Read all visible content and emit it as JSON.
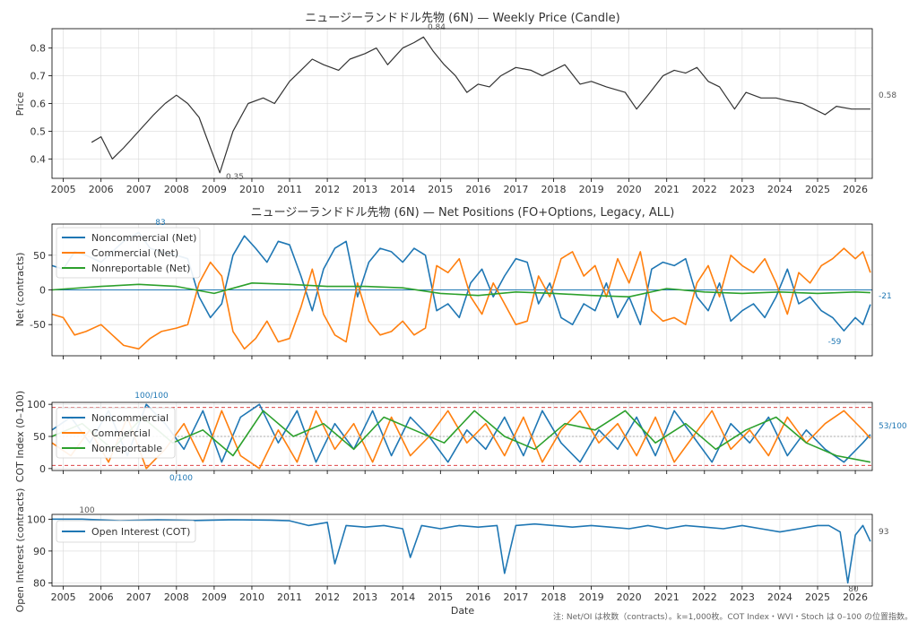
{
  "footnote": "注: Net/OI は枚数（contracts）。k=1,000枚。COT Index・WVI・Stoch は 0–100 の位置指数。",
  "xlabel": "Date",
  "x_ticks": [
    "2005",
    "2006",
    "2007",
    "2008",
    "2009",
    "2010",
    "2011",
    "2012",
    "2013",
    "2014",
    "2015",
    "2016",
    "2017",
    "2018",
    "2019",
    "2020",
    "2021",
    "2022",
    "2023",
    "2024",
    "2025",
    "2026"
  ],
  "colors": {
    "price": "#333333",
    "noncommercial": "#1f77b4",
    "commercial": "#ff7f0e",
    "nonreportable": "#2ca02c",
    "oi": "#1f77b4",
    "threshold": "#d62728",
    "mid": "#999999"
  },
  "chart_data": [
    {
      "type": "line",
      "title": "ニュージーランドドル先物 (6N) — Weekly Price (Candle)",
      "ylabel": "Price",
      "xlim": [
        2004.7,
        2026.45
      ],
      "ylim": [
        0.33,
        0.87
      ],
      "y_ticks": [
        "0.4",
        "0.5",
        "0.6",
        "0.7",
        "0.8"
      ],
      "y_tick_values": [
        0.4,
        0.5,
        0.6,
        0.7,
        0.8
      ],
      "annotations": {
        "max": "0.84",
        "min": "0.35",
        "last": "0.58"
      },
      "series": [
        {
          "name": "",
          "x": [
            2005.75,
            2006.0,
            2006.3,
            2006.6,
            2007.0,
            2007.4,
            2007.7,
            2008.0,
            2008.3,
            2008.6,
            2008.9,
            2009.15,
            2009.5,
            2009.9,
            2010.3,
            2010.6,
            2011.0,
            2011.3,
            2011.6,
            2011.9,
            2012.3,
            2012.6,
            2013.0,
            2013.3,
            2013.6,
            2014.0,
            2014.3,
            2014.55,
            2014.8,
            2015.1,
            2015.4,
            2015.7,
            2016.0,
            2016.3,
            2016.6,
            2017.0,
            2017.4,
            2017.7,
            2018.0,
            2018.3,
            2018.7,
            2019.0,
            2019.4,
            2019.9,
            2020.2,
            2020.5,
            2020.9,
            2021.2,
            2021.5,
            2021.8,
            2022.1,
            2022.4,
            2022.8,
            2023.1,
            2023.5,
            2023.9,
            2024.2,
            2024.6,
            2024.9,
            2025.2,
            2025.5,
            2025.9,
            2026.2,
            2026.4
          ],
          "y": [
            0.46,
            0.48,
            0.4,
            0.44,
            0.5,
            0.56,
            0.6,
            0.63,
            0.6,
            0.55,
            0.44,
            0.35,
            0.5,
            0.6,
            0.62,
            0.6,
            0.68,
            0.72,
            0.76,
            0.74,
            0.72,
            0.76,
            0.78,
            0.8,
            0.74,
            0.8,
            0.82,
            0.84,
            0.79,
            0.74,
            0.7,
            0.64,
            0.67,
            0.66,
            0.7,
            0.73,
            0.72,
            0.7,
            0.72,
            0.74,
            0.67,
            0.68,
            0.66,
            0.64,
            0.58,
            0.63,
            0.7,
            0.72,
            0.71,
            0.73,
            0.68,
            0.66,
            0.58,
            0.64,
            0.62,
            0.62,
            0.61,
            0.6,
            0.58,
            0.56,
            0.59,
            0.58,
            0.58,
            0.58
          ]
        }
      ]
    },
    {
      "type": "line",
      "title": "ニュージーランドドル先物 (6N) — Net Positions (FO+Options, Legacy, ALL)",
      "ylabel": "Net (contracts)",
      "xlim": [
        2004.7,
        2026.45
      ],
      "ylim": [
        -95,
        95
      ],
      "y_ticks": [
        "-50",
        "0",
        "50"
      ],
      "y_tick_values": [
        -50,
        0,
        50
      ],
      "legend_position": "top-left",
      "annotations": {
        "max": "83",
        "min": "-59",
        "last": "-21"
      },
      "series": [
        {
          "name": "Noncommercial (Net)",
          "x": [
            2004.7,
            2005.0,
            2005.3,
            2005.6,
            2006.0,
            2006.3,
            2006.6,
            2007.0,
            2007.3,
            2007.6,
            2008.0,
            2008.3,
            2008.6,
            2008.9,
            2009.2,
            2009.5,
            2009.8,
            2010.1,
            2010.4,
            2010.7,
            2011.0,
            2011.3,
            2011.6,
            2011.9,
            2012.2,
            2012.5,
            2012.8,
            2013.1,
            2013.4,
            2013.7,
            2014.0,
            2014.3,
            2014.6,
            2014.9,
            2015.2,
            2015.5,
            2015.8,
            2016.1,
            2016.4,
            2016.7,
            2017.0,
            2017.3,
            2017.6,
            2017.9,
            2018.2,
            2018.5,
            2018.8,
            2019.1,
            2019.4,
            2019.7,
            2020.0,
            2020.3,
            2020.6,
            2020.9,
            2021.2,
            2021.5,
            2021.8,
            2022.1,
            2022.4,
            2022.7,
            2023.0,
            2023.3,
            2023.6,
            2023.9,
            2024.2,
            2024.5,
            2024.8,
            2025.1,
            2025.4,
            2025.7,
            2026.0,
            2026.2,
            2026.4
          ],
          "y": [
            35,
            30,
            55,
            50,
            40,
            55,
            70,
            83,
            60,
            55,
            50,
            45,
            -10,
            -40,
            -20,
            50,
            78,
            60,
            40,
            70,
            65,
            20,
            -30,
            30,
            60,
            70,
            -10,
            40,
            60,
            55,
            40,
            60,
            50,
            -30,
            -20,
            -40,
            10,
            30,
            -10,
            20,
            45,
            40,
            -20,
            10,
            -40,
            -50,
            -20,
            -30,
            10,
            -40,
            -10,
            -50,
            30,
            40,
            35,
            45,
            -10,
            -30,
            10,
            -45,
            -30,
            -20,
            -40,
            -10,
            30,
            -20,
            -10,
            -30,
            -40,
            -59,
            -40,
            -50,
            -21
          ]
        },
        {
          "name": "Commercial (Net)",
          "x": [
            2004.7,
            2005.0,
            2005.3,
            2005.6,
            2006.0,
            2006.3,
            2006.6,
            2007.0,
            2007.3,
            2007.6,
            2008.0,
            2008.3,
            2008.6,
            2008.9,
            2009.2,
            2009.5,
            2009.8,
            2010.1,
            2010.4,
            2010.7,
            2011.0,
            2011.3,
            2011.6,
            2011.9,
            2012.2,
            2012.5,
            2012.8,
            2013.1,
            2013.4,
            2013.7,
            2014.0,
            2014.3,
            2014.6,
            2014.9,
            2015.2,
            2015.5,
            2015.8,
            2016.1,
            2016.4,
            2016.7,
            2017.0,
            2017.3,
            2017.6,
            2017.9,
            2018.2,
            2018.5,
            2018.8,
            2019.1,
            2019.4,
            2019.7,
            2020.0,
            2020.3,
            2020.6,
            2020.9,
            2021.2,
            2021.5,
            2021.8,
            2022.1,
            2022.4,
            2022.7,
            2023.0,
            2023.3,
            2023.6,
            2023.9,
            2024.2,
            2024.5,
            2024.8,
            2025.1,
            2025.4,
            2025.7,
            2026.0,
            2026.2,
            2026.4
          ],
          "y": [
            -35,
            -40,
            -65,
            -60,
            -50,
            -65,
            -80,
            -85,
            -70,
            -60,
            -55,
            -50,
            10,
            40,
            20,
            -60,
            -85,
            -70,
            -45,
            -75,
            -70,
            -25,
            30,
            -35,
            -65,
            -75,
            10,
            -45,
            -65,
            -60,
            -45,
            -65,
            -55,
            35,
            25,
            45,
            -10,
            -35,
            10,
            -20,
            -50,
            -45,
            20,
            -10,
            45,
            55,
            20,
            35,
            -10,
            45,
            10,
            55,
            -30,
            -45,
            -40,
            -50,
            10,
            35,
            -10,
            50,
            35,
            25,
            45,
            10,
            -35,
            25,
            10,
            35,
            45,
            60,
            45,
            55,
            25
          ]
        },
        {
          "name": "Nonreportable (Net)",
          "x": [
            2004.7,
            2006.0,
            2007.0,
            2008.0,
            2009.0,
            2010.0,
            2011.0,
            2012.0,
            2013.0,
            2014.0,
            2015.0,
            2016.0,
            2017.0,
            2018.0,
            2019.0,
            2020.0,
            2021.0,
            2022.0,
            2023.0,
            2024.0,
            2025.0,
            2026.0,
            2026.4
          ],
          "y": [
            0,
            5,
            8,
            5,
            -5,
            10,
            8,
            5,
            5,
            3,
            -5,
            -8,
            -3,
            -5,
            -8,
            -10,
            2,
            -3,
            -5,
            -3,
            -5,
            -3,
            -4
          ]
        }
      ]
    },
    {
      "type": "line",
      "title": "",
      "ylabel": "COT Index (0–100)",
      "xlim": [
        2004.7,
        2026.45
      ],
      "ylim": [
        -3,
        103
      ],
      "y_ticks": [
        "0",
        "50",
        "100"
      ],
      "y_tick_values": [
        0,
        50,
        100
      ],
      "threshold_lines": [
        5,
        95
      ],
      "mid_line": 50,
      "legend_position": "top-left",
      "annotations": {
        "max": "100/100",
        "min": "0/100",
        "last": "53/100"
      },
      "series": [
        {
          "name": "Noncommercial",
          "x": [
            2004.7,
            2005.2,
            2005.7,
            2006.2,
            2006.7,
            2007.2,
            2007.7,
            2008.2,
            2008.7,
            2009.2,
            2009.7,
            2010.2,
            2010.7,
            2011.2,
            2011.7,
            2012.2,
            2012.7,
            2013.2,
            2013.7,
            2014.2,
            2014.7,
            2015.2,
            2015.7,
            2016.2,
            2016.7,
            2017.2,
            2017.7,
            2018.2,
            2018.7,
            2019.2,
            2019.7,
            2020.2,
            2020.7,
            2021.2,
            2021.7,
            2022.2,
            2022.7,
            2023.2,
            2023.7,
            2024.2,
            2024.7,
            2025.2,
            2025.7,
            2026.2,
            2026.4
          ],
          "y": [
            60,
            80,
            40,
            90,
            20,
            100,
            70,
            30,
            90,
            10,
            80,
            100,
            40,
            90,
            10,
            70,
            30,
            90,
            20,
            80,
            50,
            10,
            60,
            30,
            80,
            20,
            90,
            40,
            10,
            60,
            30,
            80,
            20,
            90,
            50,
            10,
            70,
            40,
            80,
            20,
            60,
            30,
            10,
            40,
            53
          ]
        },
        {
          "name": "Commercial",
          "x": [
            2004.7,
            2005.2,
            2005.7,
            2006.2,
            2006.7,
            2007.2,
            2007.7,
            2008.2,
            2008.7,
            2009.2,
            2009.7,
            2010.2,
            2010.7,
            2011.2,
            2011.7,
            2012.2,
            2012.7,
            2013.2,
            2013.7,
            2014.2,
            2014.7,
            2015.2,
            2015.7,
            2016.2,
            2016.7,
            2017.2,
            2017.7,
            2018.2,
            2018.7,
            2019.2,
            2019.7,
            2020.2,
            2020.7,
            2021.2,
            2021.7,
            2022.2,
            2022.7,
            2023.2,
            2023.7,
            2024.2,
            2024.7,
            2025.2,
            2025.7,
            2026.2,
            2026.4
          ],
          "y": [
            40,
            20,
            60,
            10,
            80,
            0,
            30,
            70,
            10,
            90,
            20,
            0,
            60,
            10,
            90,
            30,
            70,
            10,
            80,
            20,
            50,
            90,
            40,
            70,
            20,
            80,
            10,
            60,
            90,
            40,
            70,
            20,
            80,
            10,
            50,
            90,
            30,
            60,
            20,
            80,
            40,
            70,
            90,
            60,
            47
          ]
        },
        {
          "name": "Nonreportable",
          "x": [
            2004.7,
            2005.5,
            2006.3,
            2007.1,
            2007.9,
            2008.7,
            2009.5,
            2010.3,
            2011.1,
            2011.9,
            2012.7,
            2013.5,
            2014.3,
            2015.1,
            2015.9,
            2016.7,
            2017.5,
            2018.3,
            2019.1,
            2019.9,
            2020.7,
            2021.5,
            2022.3,
            2023.1,
            2023.9,
            2024.7,
            2025.5,
            2026.4
          ],
          "y": [
            50,
            70,
            30,
            80,
            40,
            60,
            20,
            90,
            50,
            70,
            30,
            80,
            60,
            40,
            90,
            50,
            30,
            70,
            60,
            90,
            40,
            70,
            30,
            60,
            80,
            40,
            20,
            10
          ]
        }
      ]
    },
    {
      "type": "line",
      "title": "",
      "ylabel": "Open Interest (contracts)",
      "xlim": [
        2004.7,
        2026.45
      ],
      "ylim": [
        79,
        101.5
      ],
      "y_ticks": [
        "80",
        "90",
        "100"
      ],
      "y_tick_values": [
        80,
        90,
        100
      ],
      "legend_position": "top-left",
      "annotations": {
        "max": "100",
        "min": "80",
        "last": "93"
      },
      "series": [
        {
          "name": "Open Interest (COT)",
          "x": [
            2004.7,
            2005.5,
            2006.5,
            2007.5,
            2008.5,
            2009.5,
            2010.5,
            2011.0,
            2011.5,
            2012.0,
            2012.2,
            2012.5,
            2013.0,
            2013.5,
            2014.0,
            2014.2,
            2014.5,
            2015.0,
            2015.5,
            2016.0,
            2016.5,
            2016.7,
            2017.0,
            2017.5,
            2018.0,
            2018.5,
            2019.0,
            2019.5,
            2020.0,
            2020.5,
            2021.0,
            2021.5,
            2022.0,
            2022.5,
            2023.0,
            2023.5,
            2024.0,
            2024.5,
            2025.0,
            2025.3,
            2025.6,
            2025.8,
            2026.0,
            2026.2,
            2026.4
          ],
          "y": [
            100,
            100,
            99.5,
            99.8,
            99.6,
            99.8,
            99.7,
            99.5,
            98,
            99,
            86,
            98,
            97.5,
            98,
            97,
            88,
            98,
            97,
            98,
            97.5,
            98,
            83,
            98,
            98.5,
            98,
            97.5,
            98,
            97.5,
            97,
            98,
            97,
            98,
            97.5,
            97,
            98,
            97,
            96,
            97,
            98,
            98,
            96,
            80,
            95,
            98,
            93
          ]
        }
      ]
    }
  ]
}
